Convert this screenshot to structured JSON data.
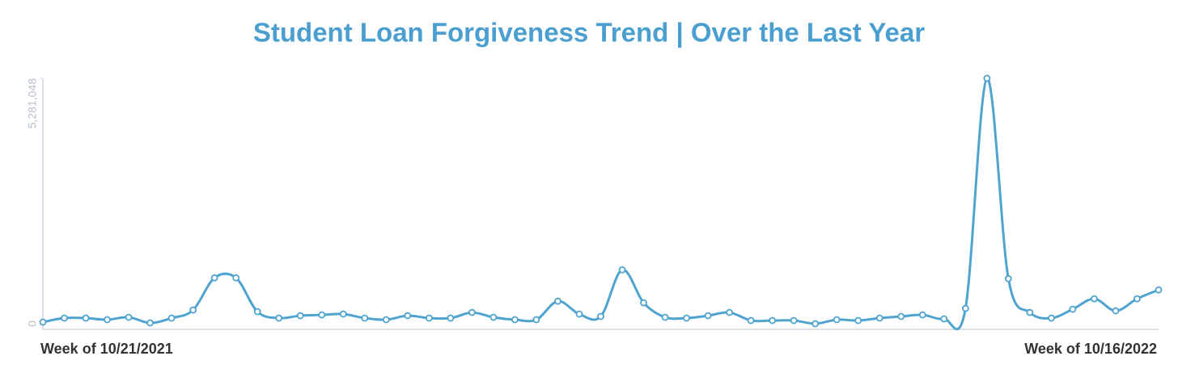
{
  "chart_data": {
    "type": "line",
    "title": "Student Loan Forgiveness Trend | Over the Last Year",
    "categories": [
      "Week of 10/21/2021",
      null,
      null,
      null,
      null,
      null,
      null,
      null,
      null,
      null,
      null,
      null,
      null,
      null,
      null,
      null,
      null,
      null,
      null,
      null,
      null,
      null,
      null,
      null,
      null,
      null,
      null,
      null,
      null,
      null,
      null,
      null,
      null,
      null,
      null,
      null,
      null,
      null,
      null,
      null,
      null,
      null,
      null,
      null,
      null,
      null,
      null,
      null,
      null,
      null,
      null,
      null,
      "Week of 10/16/2022"
    ],
    "series": [
      {
        "name": "Student Loan Forgiveness",
        "color": "#4fa3cf",
        "values": [
          35000,
          121000,
          121000,
          87000,
          139000,
          17000,
          121000,
          294000,
          987000,
          987000,
          260000,
          121000,
          173000,
          190000,
          208000,
          121000,
          87000,
          173000,
          121000,
          121000,
          242000,
          139000,
          87000,
          87000,
          485000,
          208000,
          156000,
          1160000,
          450000,
          139000,
          121000,
          173000,
          242000,
          69000,
          69000,
          69000,
          0,
          87000,
          69000,
          121000,
          156000,
          190000,
          104000,
          329000,
          5281048,
          970000,
          242000,
          121000,
          312000,
          537000,
          277000,
          537000,
          727000
        ]
      }
    ],
    "ylim": [
      0,
      5281048
    ],
    "yticks": [
      0,
      {
        "value": 5281048,
        "label": "5,281,048"
      }
    ],
    "grid": false
  }
}
